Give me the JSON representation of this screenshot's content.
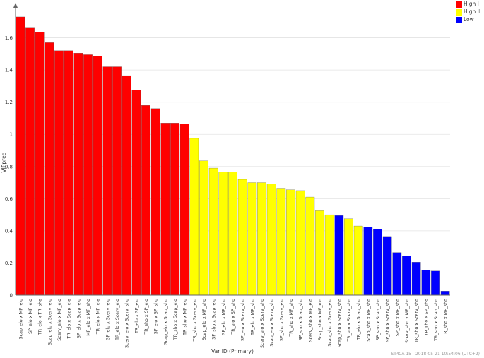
{
  "chart_data": {
    "type": "bar",
    "title": "",
    "xlabel": "Var ID (Primary)",
    "ylabel": "VIPpred",
    "ylim": [
      0,
      1.8
    ],
    "yticks": [
      0,
      0.2,
      0.4,
      0.6,
      0.8,
      1,
      1.2,
      1.4,
      1.6
    ],
    "grid": true,
    "legend_position": "top-right",
    "legend": [
      {
        "label": "High  I",
        "color": "#ff0000"
      },
      {
        "label": "High II",
        "color": "#ffff00"
      },
      {
        "label": "Low",
        "color": "#0000ff"
      }
    ],
    "categories": [
      "Scap_elo x MF_elo",
      "SP_elo x MF_elo",
      "TR_elo x TR_sho",
      "Scap_elo x Scerv_elo",
      "Scerv_elo x MF_elo",
      "TR_elo x Scap_elo",
      "SP_elo x Scap_elo",
      "MF_elo x MF_sho",
      "TR_elo x MF_elo",
      "SP_elo x Scerv_elo",
      "TR_elo x Scerv_elo",
      "Scerv_elo x Scerv_sho",
      "TR_elo x SP_elo",
      "TR_sho x SP_elo",
      "SP_elo x SP_sho",
      "Scap_elo x Scap_sho",
      "TR_sho x Scap_elo",
      "TR_sho x MF_elo",
      "TR_sho x Scerv_elo",
      "Scap_elo x MF_sho",
      "SP_sho x Scap_elo",
      "SP_elo x MF_sho",
      "TR_elo x SP_sho",
      "SP_elo x Scerv_sho",
      "TR_elo x MF_sho",
      "Scerv_elo x Scerv_sho",
      "Scap_elo x Scerv_sho",
      "SP_sho x Scerv_elo",
      "TR_sho x MF_sho",
      "SP_sho x Scap_sho",
      "Scerv_sho x MF_elo",
      "Scap_sho x MF_elo",
      "Scap_sho x Scerv_elo",
      "Scap_sho x Scerv_sho",
      "TR_elo x Scerv_sho",
      "TR_elo x Scap_sho",
      "Scap_sho x MF_sho",
      "SP_sho x Scap_sho",
      "SP_sho x Scerv_sho",
      "SP_sho x MF_sho",
      "Scerv_sho x MF_sho",
      "TR_sho x Scerv_sho",
      "TR_sho x SP_sho",
      "TR_sho x Scap_sho",
      "TR_sho x MF_sho"
    ],
    "values": [
      1.73,
      1.665,
      1.635,
      1.57,
      1.52,
      1.52,
      1.505,
      1.495,
      1.485,
      1.42,
      1.42,
      1.365,
      1.275,
      1.18,
      1.16,
      1.07,
      1.07,
      1.065,
      0.975,
      0.835,
      0.79,
      0.765,
      0.765,
      0.72,
      0.7,
      0.7,
      0.69,
      0.665,
      0.655,
      0.65,
      0.61,
      0.525,
      0.5,
      0.495,
      0.475,
      0.43,
      0.425,
      0.41,
      0.365,
      0.265,
      0.245,
      0.205,
      0.155,
      0.15,
      0.025
    ],
    "groups": [
      "High  I",
      "High  I",
      "High  I",
      "High  I",
      "High  I",
      "High  I",
      "High  I",
      "High  I",
      "High  I",
      "High  I",
      "High  I",
      "High  I",
      "High  I",
      "High  I",
      "High  I",
      "High  I",
      "High  I",
      "High  I",
      "High II",
      "High II",
      "High II",
      "High II",
      "High II",
      "High II",
      "High II",
      "High II",
      "High II",
      "High II",
      "High II",
      "High II",
      "High II",
      "High II",
      "High II",
      "Low",
      "High II",
      "High II",
      "Low",
      "Low",
      "Low",
      "Low",
      "Low",
      "Low",
      "Low",
      "Low",
      "Low"
    ]
  },
  "footer": "SIMCA 15 - 2018-05-21 10:54:06 (UTC+2)"
}
